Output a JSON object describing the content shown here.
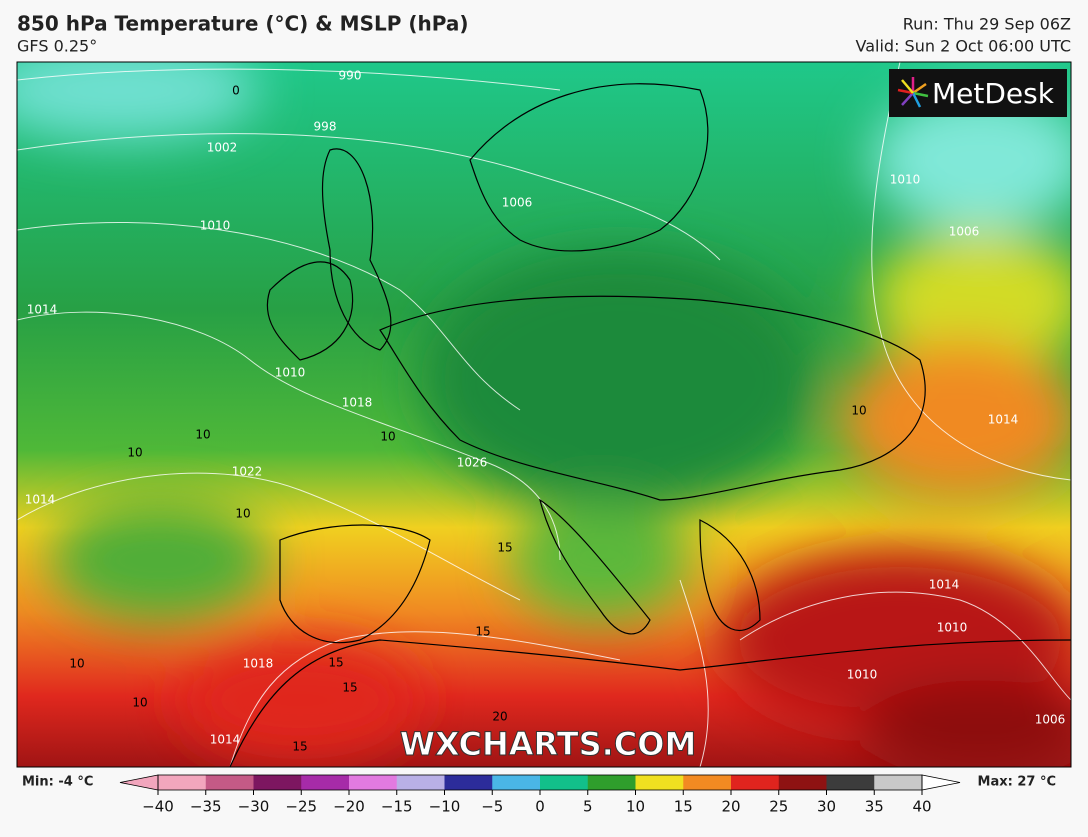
{
  "header": {
    "title": "850 hPa Temperature (°C) & MSLP (hPa)",
    "subtitle": "GFS 0.25°",
    "run": "Run: Thu 29 Sep 06Z",
    "valid": "Valid: Sun 2 Oct 06:00 UTC"
  },
  "logo": "MetDesk",
  "watermark": "WXCHARTS.COM",
  "map": {
    "isobar_labels": [
      "990",
      "998",
      "1002",
      "1010",
      "1014",
      "1010",
      "1018",
      "1026",
      "1022",
      "1014",
      "1006",
      "1006",
      "1010",
      "1018",
      "1014",
      "1014",
      "1010",
      "1010",
      "1006",
      "1014"
    ],
    "temperature_labels": [
      "0",
      "10",
      "10",
      "10",
      "10",
      "10",
      "10",
      "10",
      "15",
      "15",
      "15",
      "15",
      "15",
      "20"
    ]
  },
  "colorbar": {
    "min_label": "Min: -4 °C",
    "max_label": "Max: 27 °C",
    "ticks": [
      {
        "value": -40,
        "label": "−40"
      },
      {
        "value": -35,
        "label": "−35"
      },
      {
        "value": -30,
        "label": "−30"
      },
      {
        "value": -25,
        "label": "−25"
      },
      {
        "value": -20,
        "label": "−20"
      },
      {
        "value": -15,
        "label": "−15"
      },
      {
        "value": -10,
        "label": "−10"
      },
      {
        "value": -5,
        "label": "−5"
      },
      0,
      5,
      10,
      15,
      20,
      25,
      30,
      35,
      40
    ],
    "colors": [
      "#f2a6bd",
      "#c45a86",
      "#7d1660",
      "#a62ba8",
      "#e27ae0",
      "#b9b0e6",
      "#2c2c9a",
      "#4ab6e6",
      "#12c08a",
      "#2f9e2c",
      "#f0e020",
      "#f28a22",
      "#e0241e",
      "#8e1212",
      "#3c3c3c",
      "#c8c8c8"
    ]
  }
}
